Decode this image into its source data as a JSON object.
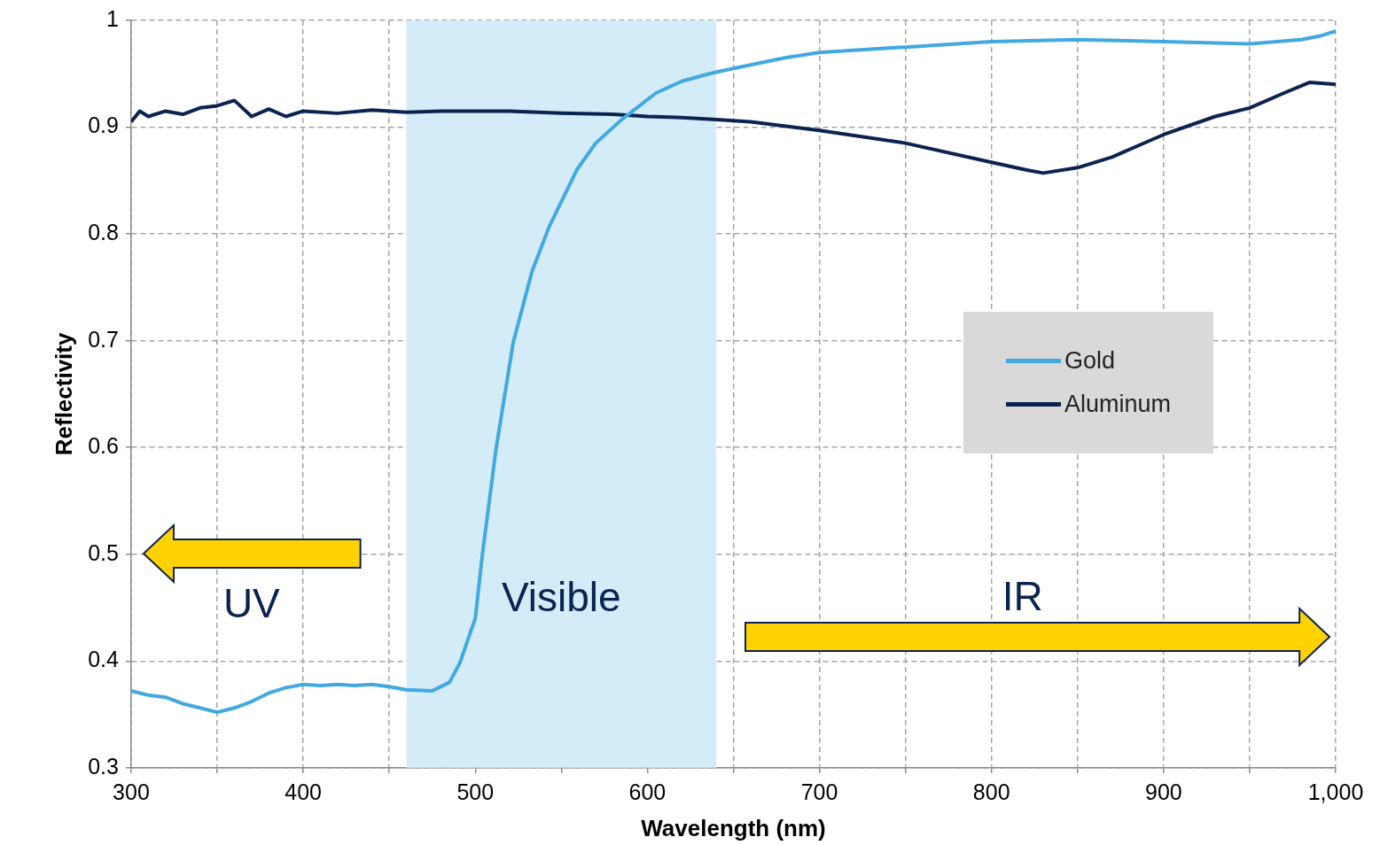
{
  "chart_data": {
    "type": "line",
    "xlabel": "Wavelength (nm)",
    "ylabel": "Reflectivity",
    "xlim": [
      300,
      1000
    ],
    "ylim": [
      0.3,
      1
    ],
    "xticks": [
      300,
      {
        "value": 350,
        "label": null
      },
      400,
      {
        "value": 450,
        "label": null
      },
      500,
      {
        "value": 550,
        "label": null
      },
      600,
      {
        "value": 650,
        "label": null
      },
      700,
      {
        "value": 750,
        "label": null
      },
      800,
      {
        "value": 850,
        "label": null
      },
      900,
      {
        "value": 950,
        "label": null
      },
      {
        "value": 1000,
        "label": "1,000"
      }
    ],
    "yticks": [
      0.3,
      0.4,
      0.5,
      0.6,
      0.7,
      0.8,
      0.9,
      1
    ],
    "grid": true,
    "legend": "right",
    "line_style": "solid",
    "marker": "none",
    "bands": [
      {
        "axis": "x",
        "from": 460,
        "to": 640,
        "label": "Visible",
        "color": "#d3ecf8"
      }
    ],
    "annotations": [
      "UV",
      "IR"
    ],
    "series": [
      {
        "name": "Gold",
        "color": "#41a9e0",
        "x": [
          300,
          310,
          320,
          330,
          340,
          350,
          360,
          370,
          380,
          390,
          400,
          410,
          420,
          430,
          440,
          450,
          460,
          475,
          485,
          491,
          500,
          504,
          512,
          522,
          533,
          543,
          559,
          570,
          585,
          605,
          620,
          636,
          650,
          680,
          700,
          750,
          800,
          850,
          900,
          950,
          980,
          990,
          1000
        ],
        "values": [
          0.372,
          0.368,
          0.366,
          0.36,
          0.356,
          0.352,
          0.356,
          0.362,
          0.37,
          0.375,
          0.378,
          0.377,
          0.378,
          0.377,
          0.378,
          0.376,
          0.373,
          0.372,
          0.38,
          0.398,
          0.44,
          0.498,
          0.598,
          0.698,
          0.765,
          0.807,
          0.86,
          0.885,
          0.907,
          0.932,
          0.943,
          0.95,
          0.955,
          0.965,
          0.97,
          0.975,
          0.98,
          0.982,
          0.98,
          0.978,
          0.982,
          0.985,
          0.99
        ]
      },
      {
        "name": "Aluminum",
        "color": "#0b2350",
        "x": [
          300,
          305,
          310,
          320,
          330,
          340,
          350,
          360,
          370,
          380,
          390,
          400,
          420,
          440,
          460,
          480,
          500,
          520,
          550,
          580,
          600,
          620,
          640,
          660,
          700,
          750,
          800,
          820,
          830,
          850,
          870,
          900,
          930,
          950,
          970,
          985,
          1000
        ],
        "values": [
          0.905,
          0.915,
          0.91,
          0.915,
          0.912,
          0.918,
          0.92,
          0.925,
          0.91,
          0.917,
          0.91,
          0.915,
          0.913,
          0.916,
          0.914,
          0.915,
          0.915,
          0.915,
          0.913,
          0.912,
          0.91,
          0.909,
          0.907,
          0.905,
          0.897,
          0.885,
          0.867,
          0.86,
          0.857,
          0.862,
          0.872,
          0.893,
          0.91,
          0.918,
          0.932,
          0.942,
          0.94
        ]
      }
    ]
  }
}
